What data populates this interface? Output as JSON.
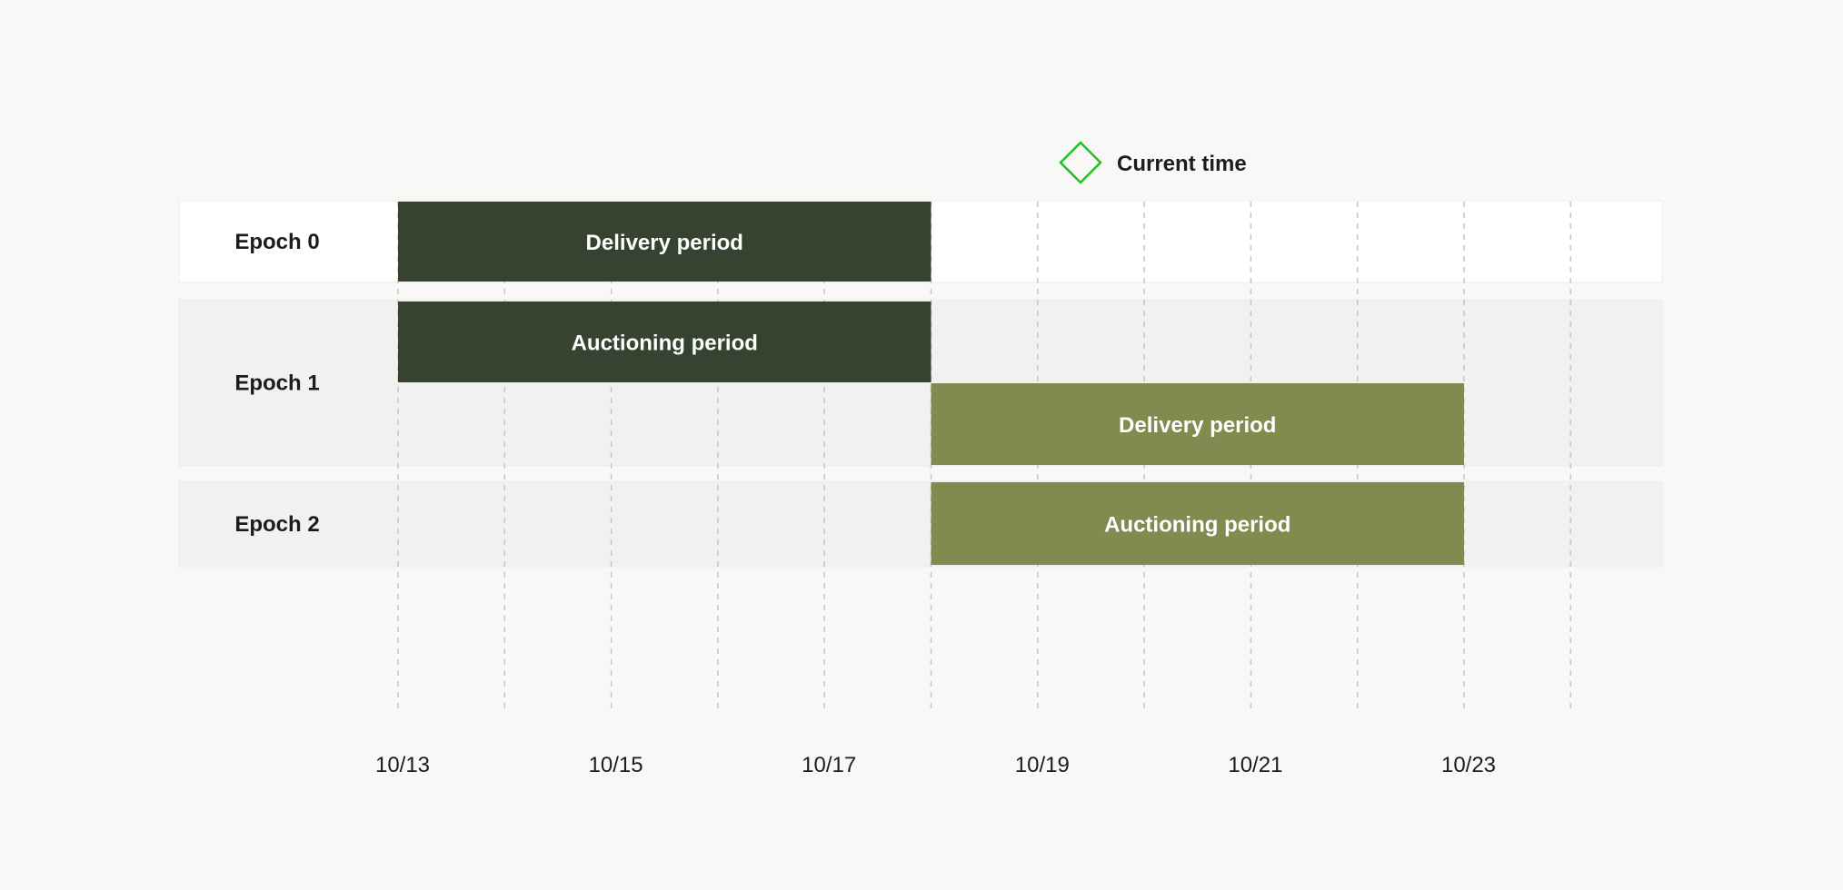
{
  "chart_data": {
    "type": "gantt",
    "legend": {
      "label": "Current time",
      "marker": "diamond",
      "color": "#22c11f",
      "placement": "top"
    },
    "x_ticks": [
      "10/13",
      "10/15",
      "10/17",
      "10/19",
      "10/21",
      "10/23"
    ],
    "x_range": [
      "10/13",
      "10/24"
    ],
    "lanes": [
      {
        "label": "Epoch 0",
        "background": "#ffffff",
        "bars": [
          {
            "label": "Delivery period",
            "start": "10/13",
            "end": "10/18",
            "color": "#364330"
          }
        ]
      },
      {
        "label": "Epoch 1",
        "background": "#f1f1f1",
        "bars": [
          {
            "label": "Auctioning period",
            "start": "10/13",
            "end": "10/18",
            "color": "#364330"
          },
          {
            "label": "Delivery period",
            "start": "10/18",
            "end": "10/23",
            "color": "#818a4f"
          }
        ]
      },
      {
        "label": "Epoch 2",
        "background": "#f1f1f1",
        "bars": [
          {
            "label": "Auctioning period",
            "start": "10/18",
            "end": "10/23",
            "color": "#818a4f"
          }
        ]
      }
    ]
  }
}
